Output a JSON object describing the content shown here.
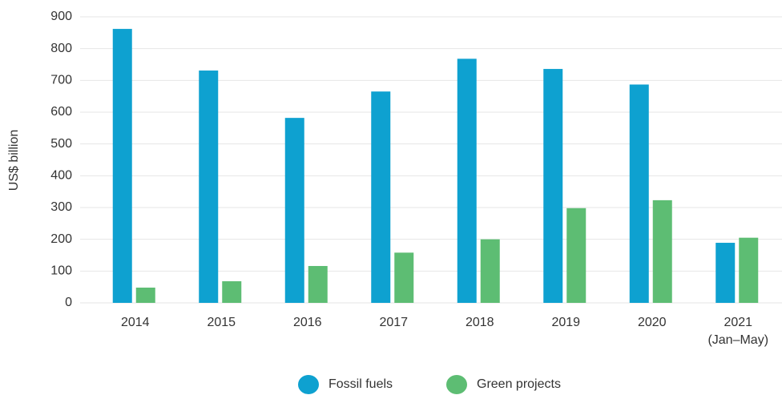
{
  "chart_data": {
    "type": "bar",
    "y_label": "US$ billion",
    "categories": [
      "2014",
      "2015",
      "2016",
      "2017",
      "2018",
      "2019",
      "2020",
      "2021 (Jan–May)"
    ],
    "series": [
      {
        "name": "Fossil fuels",
        "color": "#0ea1d0",
        "values": [
          862,
          731,
          582,
          665,
          768,
          736,
          687,
          189
        ]
      },
      {
        "name": "Green projects",
        "color": "#5dbd73",
        "values": [
          48,
          68,
          116,
          158,
          200,
          298,
          323,
          205
        ]
      }
    ],
    "ylim": [
      0,
      900
    ],
    "yticks": [
      0,
      100,
      200,
      300,
      400,
      500,
      600,
      700,
      800,
      900
    ],
    "grid": true,
    "legend": "bottom"
  }
}
